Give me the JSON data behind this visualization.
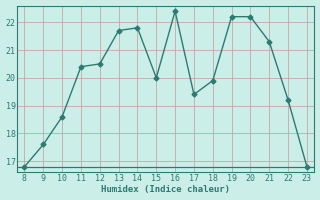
{
  "x": [
    8,
    9,
    10,
    11,
    12,
    13,
    14,
    15,
    16,
    17,
    18,
    19,
    20,
    21,
    22,
    23
  ],
  "y": [
    16.8,
    17.6,
    18.6,
    20.4,
    20.5,
    21.7,
    21.8,
    20.0,
    22.4,
    19.4,
    19.9,
    22.2,
    22.2,
    21.3,
    19.2,
    16.8
  ],
  "y_base": 16.8,
  "line_color": "#2d7a72",
  "bg_color": "#cceee8",
  "grid_color_h": "#c4a8a8",
  "grid_color_v": "#c4a8a8",
  "xlabel": "Humidex (Indice chaleur)",
  "ylim": [
    16.6,
    22.6
  ],
  "xlim": [
    7.6,
    23.4
  ],
  "yticks": [
    17,
    18,
    19,
    20,
    21,
    22
  ],
  "xticks": [
    8,
    9,
    10,
    11,
    12,
    13,
    14,
    15,
    16,
    17,
    18,
    19,
    20,
    21,
    22,
    23
  ],
  "marker": "D",
  "markersize": 2.5,
  "linewidth": 1.0
}
